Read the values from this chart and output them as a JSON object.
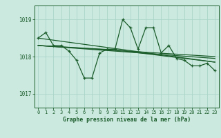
{
  "bg_color": "#cce9e0",
  "grid_color": "#aad4c8",
  "line_color": "#1a5c2a",
  "xlabel": "Graphe pression niveau de la mer (hPa)",
  "yticks": [
    1017,
    1018,
    1019
  ],
  "xticks": [
    0,
    1,
    2,
    3,
    4,
    5,
    6,
    7,
    8,
    9,
    10,
    11,
    12,
    13,
    14,
    15,
    16,
    17,
    18,
    19,
    20,
    21,
    22,
    23
  ],
  "ylim": [
    1016.62,
    1019.38
  ],
  "xlim": [
    -0.5,
    23.5
  ],
  "series1": [
    1018.5,
    1018.65,
    1018.3,
    1018.3,
    1018.15,
    1017.9,
    1017.42,
    1017.42,
    1018.1,
    1018.2,
    1018.2,
    1019.0,
    1018.78,
    1018.2,
    1018.78,
    1018.78,
    1018.1,
    1018.3,
    1017.95,
    1017.9,
    1017.75,
    1017.75,
    1017.82,
    1017.62
  ],
  "trend1_x": [
    0,
    23
  ],
  "trend1_y": [
    1018.5,
    1017.85
  ],
  "trend2_x": [
    0,
    10,
    23
  ],
  "trend2_y": [
    1018.3,
    1018.18,
    1017.85
  ],
  "trend3_x": [
    0,
    23
  ],
  "trend3_y": [
    1018.3,
    1017.95
  ],
  "trend4_x": [
    0,
    23
  ],
  "trend4_y": [
    1018.3,
    1018.0
  ]
}
